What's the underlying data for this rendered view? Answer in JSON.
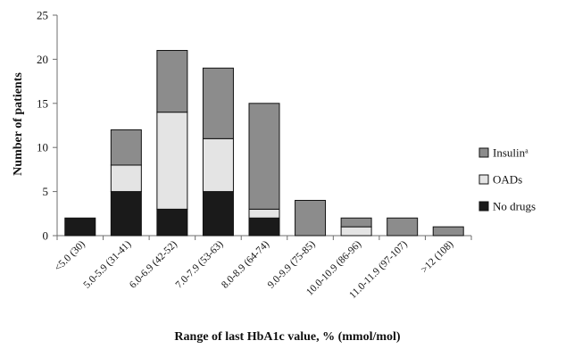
{
  "chart_data": {
    "type": "bar",
    "stacked": true,
    "categories": [
      "<5.0 (30)",
      "5.0-5.9 (31-41)",
      "6.0-6.9 (42-52)",
      "7.0-7.9 (53-63)",
      "8.0-8.9 (64-74)",
      "9.0-9.9 (75-85)",
      "10.0-10.9 (86-96)",
      "11.0-11.9 (97-107)",
      ">12 (108)"
    ],
    "series": [
      {
        "name": "No drugs",
        "color": "#1a1a1a",
        "values": [
          2,
          5,
          3,
          5,
          2,
          0,
          0,
          0,
          0
        ]
      },
      {
        "name": "OADs",
        "color": "#e4e4e4",
        "values": [
          0,
          3,
          11,
          6,
          1,
          0,
          1,
          0,
          0
        ]
      },
      {
        "name": "Insulin",
        "superscript": "a",
        "color": "#8c8c8c",
        "values": [
          0,
          4,
          7,
          8,
          12,
          4,
          1,
          2,
          1
        ]
      }
    ],
    "legend_order": [
      "Insulin",
      "OADs",
      "No drugs"
    ],
    "title": "",
    "xlabel": "Range of last HbA1c value, % (mmol/mol)",
    "ylabel": "Number of patients",
    "ylim": [
      0,
      25
    ],
    "yticks": [
      0,
      5,
      10,
      15,
      20,
      25
    ],
    "grid": false,
    "legend_position": "right"
  }
}
